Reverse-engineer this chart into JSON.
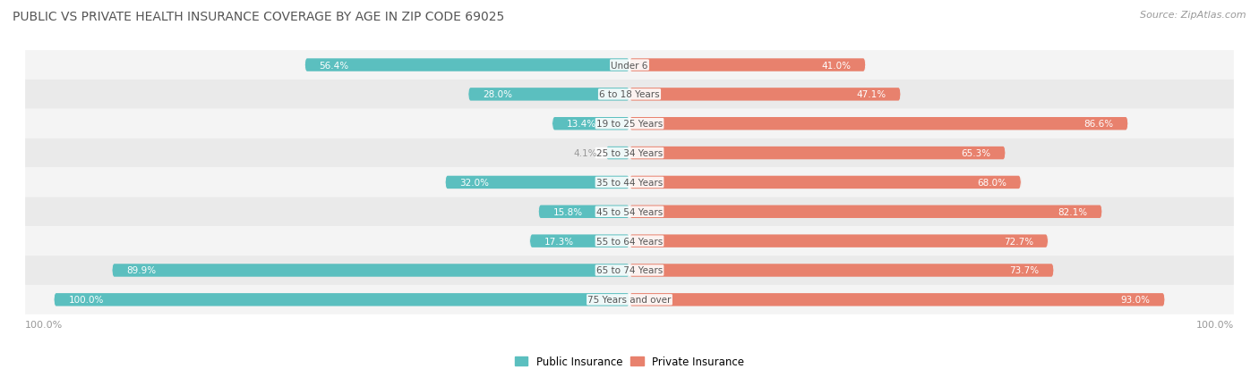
{
  "title": "PUBLIC VS PRIVATE HEALTH INSURANCE COVERAGE BY AGE IN ZIP CODE 69025",
  "source": "Source: ZipAtlas.com",
  "categories": [
    "Under 6",
    "6 to 18 Years",
    "19 to 25 Years",
    "25 to 34 Years",
    "35 to 44 Years",
    "45 to 54 Years",
    "55 to 64 Years",
    "65 to 74 Years",
    "75 Years and over"
  ],
  "public_values": [
    56.4,
    28.0,
    13.4,
    4.1,
    32.0,
    15.8,
    17.3,
    89.9,
    100.0
  ],
  "private_values": [
    41.0,
    47.1,
    86.6,
    65.3,
    68.0,
    82.1,
    72.7,
    73.7,
    93.0
  ],
  "public_color": "#5bbfbf",
  "private_color": "#e8816d",
  "row_colors": [
    "#f4f4f4",
    "#eaeaea"
  ],
  "label_inside_color": "#ffffff",
  "label_outside_color": "#999999",
  "max_value": 100.0,
  "bar_height": 0.42,
  "figsize": [
    14.06,
    4.14
  ],
  "dpi": 100,
  "threshold_inside_label": 12.0
}
